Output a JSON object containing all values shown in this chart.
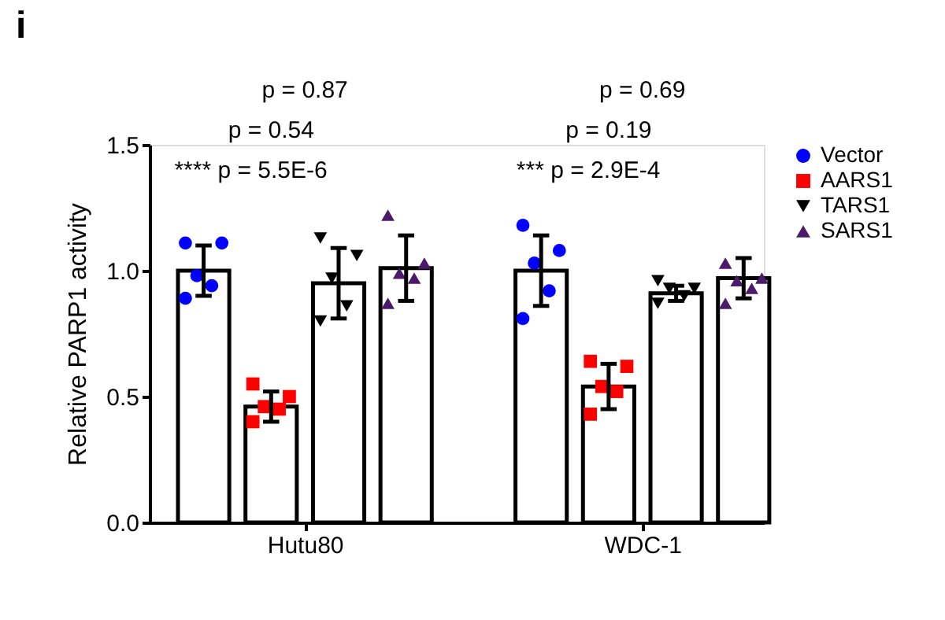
{
  "chart_data": {
    "type": "bar",
    "title": "i",
    "ylabel": "Relative PARP1 activity",
    "categories": [
      "Hutu80",
      "WDC-1"
    ],
    "ylim": [
      0,
      1.5
    ],
    "yticks": [
      {
        "value": 0,
        "label": "0.0"
      },
      {
        "value": 0.5,
        "label": "0.5"
      },
      {
        "value": 1,
        "label": "1.0"
      },
      {
        "value": 1.5,
        "label": "1.5"
      }
    ],
    "grid": false,
    "legend": "top right",
    "series": [
      {
        "color": "#ffffff",
        "values": [
          1.0,
          1.0
        ],
        "errors": [
          0.1,
          0.14
        ]
      },
      {
        "color": "#ffffff",
        "values": [
          0.46,
          0.54
        ],
        "errors": [
          0.06,
          0.09
        ]
      },
      {
        "color": "#ffffff",
        "values": [
          0.95,
          0.91
        ],
        "errors": [
          0.14,
          0.03
        ]
      },
      {
        "color": "#ffffff",
        "values": [
          1.01,
          0.97
        ],
        "errors": [
          0.13,
          0.08
        ]
      },
      {
        "type": "scatter",
        "name": "Vector",
        "color": "#0000ff",
        "marker": "circle",
        "x": [
          "Hutu80",
          "Hutu80",
          "Hutu80",
          "Hutu80",
          "Hutu80",
          "WDC-1",
          "WDC-1",
          "WDC-1",
          "WDC-1",
          "WDC-1"
        ],
        "values": [
          1.11,
          1.11,
          0.98,
          0.94,
          0.89,
          1.18,
          1.08,
          1.03,
          0.92,
          0.81
        ]
      },
      {
        "type": "scatter",
        "name": "AARS1",
        "color": "#ff0000",
        "marker": "square",
        "x": [
          "Hutu80",
          "Hutu80",
          "Hutu80",
          "Hutu80",
          "Hutu80",
          "WDC-1",
          "WDC-1",
          "WDC-1",
          "WDC-1",
          "WDC-1"
        ],
        "values": [
          0.55,
          0.5,
          0.46,
          0.45,
          0.4,
          0.64,
          0.62,
          0.54,
          0.52,
          0.43
        ]
      },
      {
        "type": "scatter",
        "name": "TARS1",
        "color": "#000000",
        "marker": "triangle-down",
        "x": [
          "Hutu80",
          "Hutu80",
          "Hutu80",
          "Hutu80",
          "Hutu80",
          "WDC-1",
          "WDC-1",
          "WDC-1",
          "WDC-1",
          "WDC-1"
        ],
        "values": [
          1.13,
          1.06,
          0.97,
          0.86,
          0.8,
          0.96,
          0.93,
          0.93,
          0.9,
          0.87
        ]
      },
      {
        "type": "scatter",
        "name": "SARS1",
        "color": "#4b1a6b",
        "marker": "triangle",
        "x": [
          "Hutu80",
          "Hutu80",
          "Hutu80",
          "Hutu80",
          "Hutu80",
          "WDC-1",
          "WDC-1",
          "WDC-1",
          "WDC-1",
          "WDC-1"
        ],
        "values": [
          1.22,
          1.03,
          0.99,
          0.97,
          0.87,
          1.03,
          0.97,
          0.96,
          0.93,
          0.87
        ]
      }
    ],
    "annotations": [
      "p = 0.87",
      "p = 0.54",
      "**** p = 5.5E-6",
      "p = 0.69",
      "p = 0.19",
      "*** p = 2.9E-4"
    ]
  }
}
